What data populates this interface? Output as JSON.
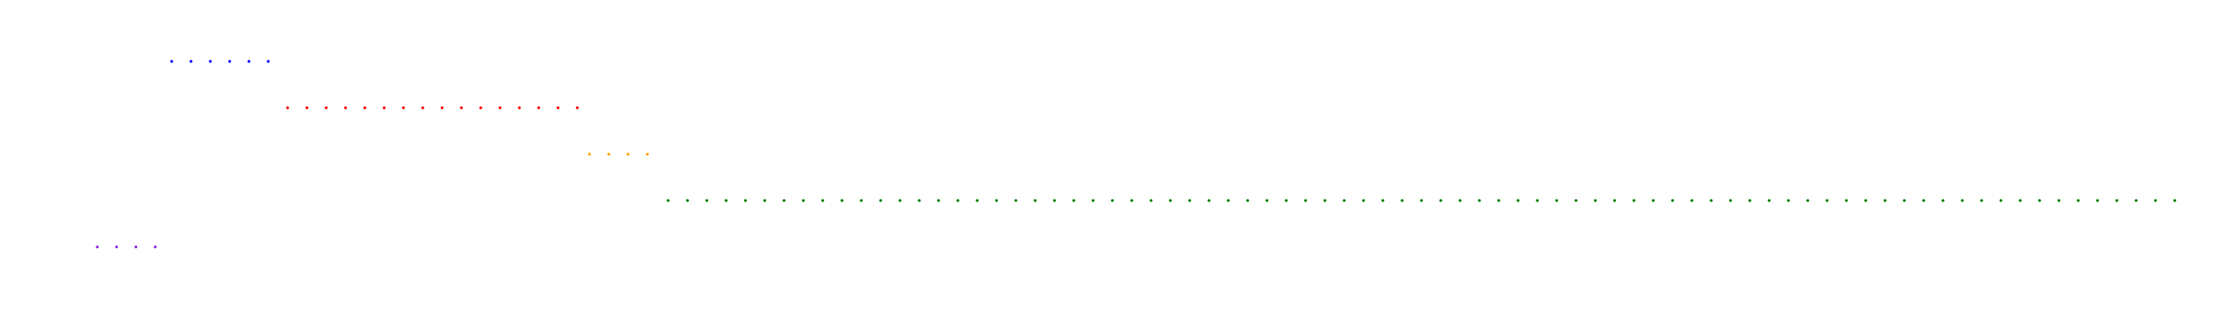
{
  "chart_data": {
    "type": "scatter",
    "title": "",
    "xlabel": "",
    "ylabel": "",
    "grid": false,
    "legend": "none",
    "x_range": [
      0,
      1560
    ],
    "series": [
      {
        "color": "#0000ff",
        "y": 1,
        "start": 120,
        "step": 13.5,
        "count": 6
      },
      {
        "color": "#ff0000",
        "y": 2,
        "start": 201,
        "step": 13.5,
        "count": 16
      },
      {
        "color": "#ffa500",
        "y": 3,
        "start": 412,
        "step": 13.5,
        "count": 4
      },
      {
        "color": "#008000",
        "y": 4,
        "start": 467,
        "step": 13.5,
        "count": 79
      },
      {
        "color": "#8a2be2",
        "y": 5,
        "start": 68,
        "step": 13.5,
        "count": 4
      }
    ]
  }
}
